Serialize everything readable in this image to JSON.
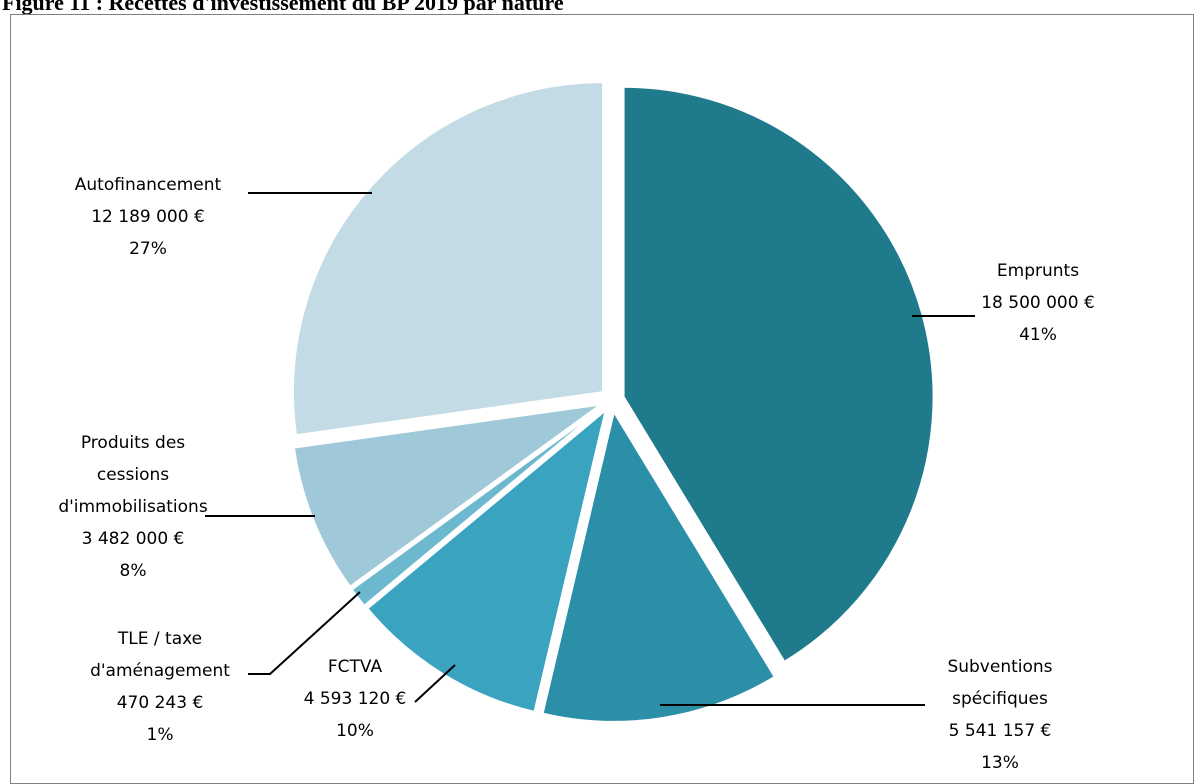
{
  "caption": "Figure 11 : Recettes d'investissement du BP 2019 par nature",
  "chart_data": {
    "type": "pie",
    "title": "",
    "slices": [
      {
        "name": "Emprunts",
        "value": 18500000,
        "value_label": "18 500 000 €",
        "percent_label": "41%",
        "color": "#1f7a8c",
        "label_lines": [
          "Emprunts"
        ]
      },
      {
        "name": "Subventions spécifiques",
        "value": 5541157,
        "value_label": "5 541 157 €",
        "percent_label": "13%",
        "color": "#2b8fa7",
        "label_lines": [
          "Subventions",
          "spécifiques"
        ]
      },
      {
        "name": "FCTVA",
        "value": 4593120,
        "value_label": "4 593 120 €",
        "percent_label": "10%",
        "color": "#3aa3bf",
        "label_lines": [
          "FCTVA"
        ]
      },
      {
        "name": "TLE / taxe d'aménagement",
        "value": 470243,
        "value_label": "470 243 €",
        "percent_label": "1%",
        "color": "#6cb8cf",
        "label_lines": [
          "TLE / taxe",
          "d'aménagement"
        ]
      },
      {
        "name": "Produits des cessions d'immobilisations",
        "value": 3482000,
        "value_label": "3 482 000 €",
        "percent_label": "8%",
        "color": "#9fc9d8",
        "label_lines": [
          "Produits des",
          "cessions",
          "d'immobilisations"
        ]
      },
      {
        "name": "Autofinancement",
        "value": 12189000,
        "value_label": "12 189 000 €",
        "percent_label": "27%",
        "color": "#c2dbe5",
        "label_lines": [
          "Autofinancement"
        ]
      }
    ],
    "legend": "none"
  }
}
